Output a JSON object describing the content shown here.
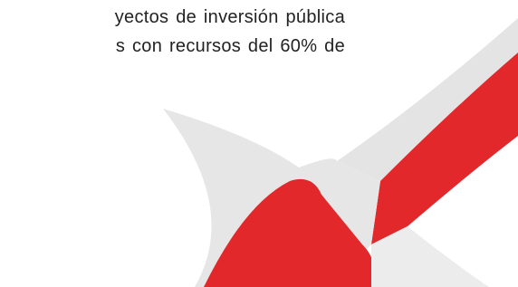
{
  "paragraph": {
    "lines": [
      "yectos de inversión pública",
      "s con recursos del 60% de"
    ]
  }
}
